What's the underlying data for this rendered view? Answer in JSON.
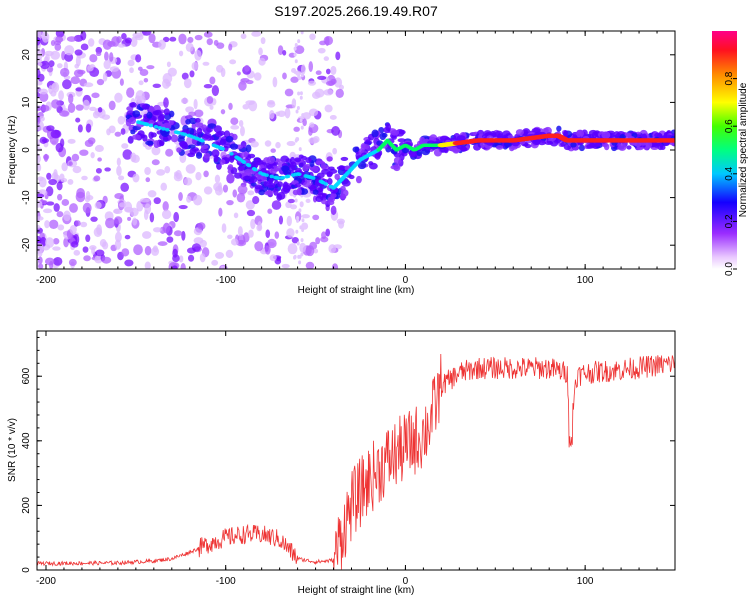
{
  "title": "S197.2025.266.19.49.R07",
  "chart_data": [
    {
      "type": "heatmap",
      "xlabel": "Height of straight line (km)",
      "ylabel": "Frequency (Hz)",
      "xlim": [
        -205,
        150
      ],
      "ylim": [
        -25,
        25
      ],
      "xticks": [
        -200,
        -100,
        0,
        100
      ],
      "yticks": [
        -20,
        -10,
        0,
        10,
        20
      ],
      "ridge_frequency": {
        "x": [
          -150,
          -140,
          -120,
          -100,
          -80,
          -70,
          -60,
          -50,
          -45,
          -40,
          -35,
          -30,
          -25,
          -20,
          -15,
          -10,
          -5,
          0,
          5,
          10,
          20,
          40,
          60,
          80,
          85,
          90,
          100,
          120,
          150
        ],
        "hz": [
          6,
          5,
          3,
          0,
          -5,
          -6,
          -5,
          -6,
          -7,
          -8,
          -6,
          -4,
          -2,
          -1,
          0,
          2,
          0,
          1,
          0,
          1,
          1,
          2,
          2,
          3,
          3,
          2,
          2,
          2,
          2
        ]
      },
      "colorbar": {
        "label": "Normalized spectral amplitude",
        "ticks": [
          "0.0",
          "0.2",
          "0.4",
          "0.6",
          "0.8"
        ],
        "range": [
          0,
          1
        ]
      }
    },
    {
      "type": "line",
      "xlabel": "Height of straight line (km)",
      "ylabel": "SNR (10 * v/v)",
      "xlim": [
        -205,
        150
      ],
      "ylim": [
        0,
        740
      ],
      "xticks": [
        -200,
        -100,
        0,
        100
      ],
      "yticks": [
        0,
        200,
        400,
        600
      ],
      "series": [
        {
          "name": "SNR",
          "color": "#ee3333",
          "x": [
            -205,
            -160,
            -140,
            -130,
            -120,
            -110,
            -100,
            -90,
            -80,
            -70,
            -60,
            -50,
            -40,
            -35,
            -30,
            -20,
            -10,
            0,
            10,
            15,
            20,
            30,
            40,
            60,
            80,
            90,
            92,
            95,
            100,
            120,
            150
          ],
          "y": [
            20,
            22,
            28,
            35,
            55,
            80,
            100,
            110,
            110,
            95,
            35,
            25,
            30,
            120,
            200,
            280,
            340,
            380,
            420,
            480,
            570,
            610,
            625,
            625,
            625,
            610,
            440,
            600,
            610,
            620,
            640
          ]
        }
      ]
    }
  ]
}
